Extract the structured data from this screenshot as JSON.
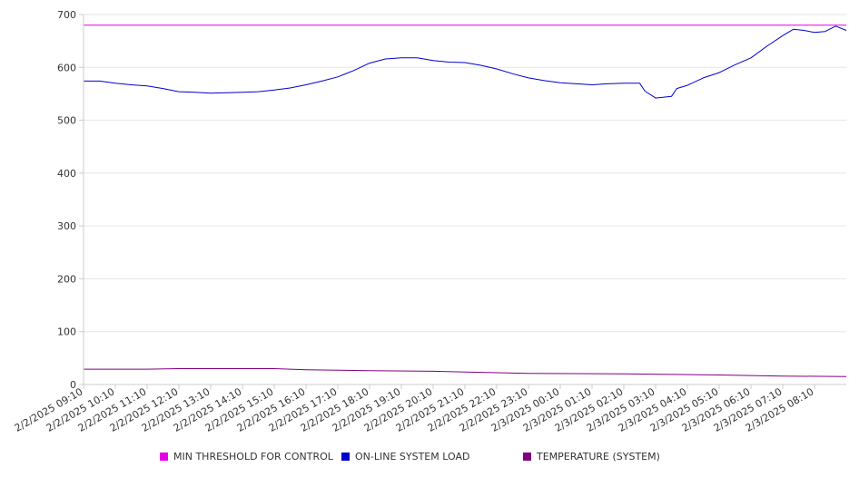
{
  "chart_data": {
    "type": "line",
    "title": "",
    "xlabel": "",
    "ylabel": "",
    "ylim": [
      0,
      700
    ],
    "yticks": [
      "0",
      "100",
      "200",
      "300",
      "400",
      "500",
      "600",
      "700"
    ],
    "grid": true,
    "legend_placement": "bottom",
    "x_tick_labels": [
      "2/2/2025 09:10",
      "2/2/2025 10:10",
      "2/2/2025 11:10",
      "2/2/2025 12:10",
      "2/2/2025 13:10",
      "2/2/2025 14:10",
      "2/2/2025 15:10",
      "2/2/2025 16:10",
      "2/2/2025 17:10",
      "2/2/2025 18:10",
      "2/2/2025 19:10",
      "2/2/2025 20:10",
      "2/2/2025 21:10",
      "2/2/2025 22:10",
      "2/2/2025 23:10",
      "2/3/2025 00:10",
      "2/3/2025 01:10",
      "2/3/2025 02:10",
      "2/3/2025 03:10",
      "2/3/2025 04:10",
      "2/3/2025 05:10",
      "2/3/2025 06:10",
      "2/3/2025 07:10",
      "2/3/2025 08:10"
    ],
    "x_range": [
      "2/2/2025 09:10",
      "2/3/2025 09:10"
    ],
    "series": [
      {
        "name": "MIN THRESHOLD FOR CONTROL",
        "color": "#e600e6",
        "points": [
          [
            "2/2/2025 09:10",
            680
          ],
          [
            "2/3/2025 09:10",
            680
          ]
        ]
      },
      {
        "name": "ON-LINE SYSTEM LOAD",
        "color": "#0000cc",
        "points": [
          [
            "2/2/2025 09:10",
            574
          ],
          [
            "2/2/2025 09:40",
            574
          ],
          [
            "2/2/2025 10:10",
            570
          ],
          [
            "2/2/2025 10:40",
            567
          ],
          [
            "2/2/2025 11:10",
            565
          ],
          [
            "2/2/2025 11:40",
            560
          ],
          [
            "2/2/2025 12:10",
            554
          ],
          [
            "2/2/2025 12:40",
            553
          ],
          [
            "2/2/2025 13:10",
            551
          ],
          [
            "2/2/2025 13:40",
            552
          ],
          [
            "2/2/2025 14:10",
            553
          ],
          [
            "2/2/2025 14:40",
            554
          ],
          [
            "2/2/2025 15:10",
            557
          ],
          [
            "2/2/2025 15:40",
            561
          ],
          [
            "2/2/2025 16:10",
            567
          ],
          [
            "2/2/2025 16:40",
            574
          ],
          [
            "2/2/2025 17:10",
            582
          ],
          [
            "2/2/2025 17:40",
            594
          ],
          [
            "2/2/2025 18:10",
            608
          ],
          [
            "2/2/2025 18:40",
            616
          ],
          [
            "2/2/2025 19:10",
            618
          ],
          [
            "2/2/2025 19:40",
            618
          ],
          [
            "2/2/2025 20:10",
            613
          ],
          [
            "2/2/2025 20:40",
            610
          ],
          [
            "2/2/2025 21:10",
            609
          ],
          [
            "2/2/2025 21:40",
            604
          ],
          [
            "2/2/2025 22:10",
            597
          ],
          [
            "2/2/2025 22:40",
            588
          ],
          [
            "2/2/2025 23:10",
            580
          ],
          [
            "2/2/2025 23:40",
            575
          ],
          [
            "2/3/2025 00:10",
            571
          ],
          [
            "2/3/2025 00:40",
            569
          ],
          [
            "2/3/2025 01:10",
            567
          ],
          [
            "2/3/2025 01:40",
            569
          ],
          [
            "2/3/2025 02:10",
            570
          ],
          [
            "2/3/2025 02:40",
            570
          ],
          [
            "2/3/2025 02:50",
            555
          ],
          [
            "2/3/2025 03:10",
            542
          ],
          [
            "2/3/2025 03:40",
            545
          ],
          [
            "2/3/2025 03:50",
            560
          ],
          [
            "2/3/2025 04:10",
            566
          ],
          [
            "2/3/2025 04:40",
            580
          ],
          [
            "2/3/2025 05:10",
            590
          ],
          [
            "2/3/2025 05:40",
            605
          ],
          [
            "2/3/2025 06:10",
            618
          ],
          [
            "2/3/2025 06:40",
            640
          ],
          [
            "2/3/2025 07:10",
            660
          ],
          [
            "2/3/2025 07:30",
            672
          ],
          [
            "2/3/2025 07:50",
            670
          ],
          [
            "2/3/2025 08:10",
            666
          ],
          [
            "2/3/2025 08:30",
            668
          ],
          [
            "2/3/2025 08:50",
            678
          ],
          [
            "2/3/2025 09:10",
            670
          ]
        ]
      },
      {
        "name": "TEMPERATURE (SYSTEM)",
        "color": "#800080",
        "points": [
          [
            "2/2/2025 09:10",
            29
          ],
          [
            "2/2/2025 11:10",
            29
          ],
          [
            "2/2/2025 12:10",
            30
          ],
          [
            "2/2/2025 15:10",
            30
          ],
          [
            "2/2/2025 16:10",
            28
          ],
          [
            "2/2/2025 18:10",
            26
          ],
          [
            "2/2/2025 20:10",
            25
          ],
          [
            "2/2/2025 23:10",
            21
          ],
          [
            "2/3/2025 02:10",
            20
          ],
          [
            "2/3/2025 05:10",
            18
          ],
          [
            "2/3/2025 07:10",
            16
          ],
          [
            "2/3/2025 09:10",
            15
          ]
        ]
      }
    ]
  }
}
